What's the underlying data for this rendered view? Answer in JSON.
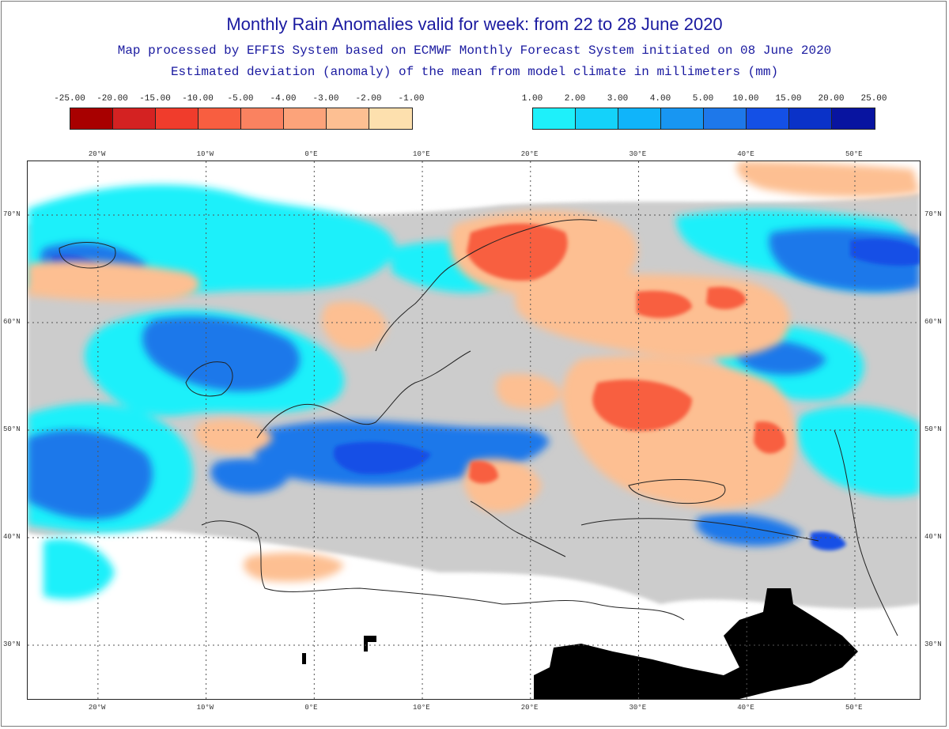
{
  "header": {
    "title": "Monthly Rain Anomalies valid for week: from 22 to 28 June 2020",
    "subtitle_1": "Map processed by EFFIS System based on ECMWF Monthly Forecast System initiated on 08 June 2020",
    "subtitle_2": "Estimated deviation (anomaly) of the mean from model climate in millimeters (mm)"
  },
  "legend_negative": {
    "labels": [
      "-25.00",
      "-20.00",
      "-15.00",
      "-10.00",
      "-5.00",
      "-4.00",
      "-3.00",
      "-2.00",
      "-1.00"
    ],
    "colors": [
      "#a80000",
      "#d42222",
      "#f03c2c",
      "#f85e40",
      "#fa8260",
      "#fca37a",
      "#fdbf92",
      "#fde0ae"
    ]
  },
  "legend_positive": {
    "labels": [
      "1.00",
      "2.00",
      "3.00",
      "4.00",
      "5.00",
      "10.00",
      "15.00",
      "20.00",
      "25.00"
    ],
    "colors": [
      "#1ef0fa",
      "#14d2fa",
      "#10b4fa",
      "#1896f2",
      "#1e78ea",
      "#1450e6",
      "#0a32c8",
      "#0814a0"
    ]
  },
  "map": {
    "lon_labels": [
      "20°W",
      "10°W",
      "0°E",
      "10°E",
      "20°E",
      "30°E",
      "40°E",
      "50°E"
    ],
    "lat_labels": [
      "70°N",
      "60°N",
      "50°N",
      "40°N",
      "30°N"
    ],
    "lon_range": [
      -26.5,
      56
    ],
    "lat_range": [
      25,
      75
    ],
    "gridlines": true,
    "colors": {
      "land_line": "#222222",
      "grey_contour": "#b4b4b4",
      "nodata": "#000000"
    }
  }
}
